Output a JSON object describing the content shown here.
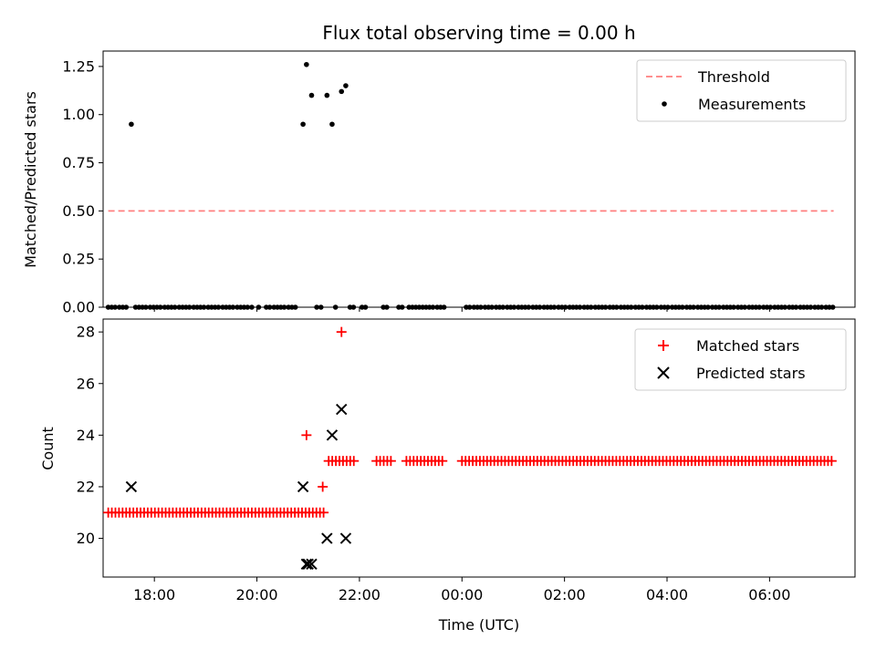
{
  "chart_data": [
    {
      "type": "scatter",
      "title": "Flux total observing time = 0.00 h",
      "ylabel": "Matched/Predicted stars",
      "xlabel": "",
      "xlim": [
        "17:00",
        "07:40"
      ],
      "ylim": [
        0,
        1.33
      ],
      "yticks": [
        "0.00",
        "0.25",
        "0.50",
        "0.75",
        "1.00",
        "1.25"
      ],
      "legend": {
        "position": "top-right",
        "entries": [
          "Threshold",
          "Measurements"
        ]
      },
      "colors": {
        "threshold": "#ff7f7f",
        "measurements": "#000000"
      },
      "threshold": {
        "name": "Threshold",
        "value": 0.5,
        "x": [
          "17:06",
          "07:15"
        ]
      },
      "measurements": {
        "name": "Measurements",
        "points": [
          {
            "x": "17:33",
            "y": 0.95
          },
          {
            "x": "20:54",
            "y": 0.95
          },
          {
            "x": "20:58",
            "y": 1.26
          },
          {
            "x": "21:04",
            "y": 1.1
          },
          {
            "x": "21:22",
            "y": 1.1
          },
          {
            "x": "21:28",
            "y": 0.95
          },
          {
            "x": "21:39",
            "y": 1.12
          },
          {
            "x": "21:44",
            "y": 1.15
          }
        ],
        "zeros": [
          "17:06",
          "17:10",
          "17:14",
          "17:19",
          "17:23",
          "17:27",
          "17:38",
          "17:42",
          "17:46",
          "17:50",
          "17:55",
          "17:59",
          "18:03",
          "18:07",
          "18:12",
          "18:16",
          "18:20",
          "18:24",
          "18:29",
          "18:33",
          "18:37",
          "18:41",
          "18:46",
          "18:50",
          "18:54",
          "18:58",
          "19:03",
          "19:07",
          "19:11",
          "19:15",
          "19:20",
          "19:24",
          "19:28",
          "19:32",
          "19:37",
          "19:41",
          "19:45",
          "19:49",
          "19:54",
          "20:02",
          "20:11",
          "20:15",
          "20:20",
          "20:24",
          "20:28",
          "20:32",
          "20:37",
          "20:41",
          "20:45",
          "21:10",
          "21:15",
          "21:32",
          "21:49",
          "21:53",
          "22:03",
          "22:07",
          "22:28",
          "22:32",
          "22:46",
          "22:50",
          "22:58",
          "23:02",
          "23:06",
          "23:10",
          "23:14",
          "23:18",
          "23:22",
          "23:26",
          "23:31",
          "23:35",
          "23:39",
          "00:05",
          "00:09",
          "00:14",
          "00:18",
          "00:22",
          "00:27",
          "00:31",
          "00:35",
          "00:40",
          "00:44",
          "00:48",
          "00:53",
          "00:57",
          "01:01",
          "01:06",
          "01:10",
          "01:14",
          "01:18",
          "01:23",
          "01:27",
          "01:31",
          "01:36",
          "01:40",
          "01:44",
          "01:48",
          "01:53",
          "01:57",
          "02:01",
          "02:06",
          "02:10",
          "02:14",
          "02:18",
          "02:23",
          "02:27",
          "02:31",
          "02:36",
          "02:40",
          "02:44",
          "02:48",
          "02:53",
          "02:57",
          "03:01",
          "03:06",
          "03:10",
          "03:14",
          "03:18",
          "03:23",
          "03:27",
          "03:31",
          "03:36",
          "03:40",
          "03:44",
          "03:48",
          "03:53",
          "03:57",
          "04:01",
          "04:06",
          "04:10",
          "04:14",
          "04:18",
          "04:23",
          "04:27",
          "04:31",
          "04:36",
          "04:40",
          "04:44",
          "04:48",
          "04:53",
          "04:57",
          "05:01",
          "05:06",
          "05:10",
          "05:14",
          "05:18",
          "05:23",
          "05:27",
          "05:31",
          "05:36",
          "05:40",
          "05:44",
          "05:48",
          "05:53",
          "05:57",
          "06:01",
          "06:06",
          "06:10",
          "06:14",
          "06:18",
          "06:23",
          "06:27",
          "06:31",
          "06:36",
          "06:40",
          "06:44",
          "06:48",
          "06:53",
          "06:57",
          "07:01",
          "07:06",
          "07:10",
          "07:14"
        ]
      }
    },
    {
      "type": "scatter",
      "ylabel": "Count",
      "xlabel": "Time (UTC)",
      "xlim": [
        "17:00",
        "07:40"
      ],
      "ylim": [
        18.5,
        28.5
      ],
      "yticks": [
        "20",
        "22",
        "24",
        "26",
        "28"
      ],
      "xticks": [
        "18:00",
        "20:00",
        "22:00",
        "00:00",
        "02:00",
        "04:00",
        "06:00"
      ],
      "legend": {
        "position": "top-right",
        "entries": [
          "Matched stars",
          "Predicted stars"
        ]
      },
      "colors": {
        "matched": "#ff0000",
        "predicted": "#000000"
      },
      "series": [
        {
          "name": "Matched stars",
          "marker": "plus",
          "points": [
            {
              "x": "20:58",
              "y": 24
            },
            {
              "x": "21:17",
              "y": 22
            },
            {
              "x": "21:39",
              "y": 28
            }
          ],
          "runs": [
            {
              "y": 21,
              "from": "17:06",
              "to": "21:20",
              "step_min": 4.2
            },
            {
              "y": 23,
              "from": "21:24",
              "to": "21:56",
              "step_min": 4.2
            },
            {
              "y": 23,
              "from": "22:20",
              "to": "22:38",
              "step_min": 4.2
            },
            {
              "y": 23,
              "from": "22:55",
              "to": "23:40",
              "step_min": 4.2
            },
            {
              "y": 23,
              "from": "00:00",
              "to": "07:15",
              "step_min": 4.2
            }
          ]
        },
        {
          "name": "Predicted stars",
          "marker": "x",
          "points": [
            {
              "x": "17:33",
              "y": 22
            },
            {
              "x": "20:54",
              "y": 22
            },
            {
              "x": "20:58",
              "y": 19
            },
            {
              "x": "21:00",
              "y": 19
            },
            {
              "x": "21:04",
              "y": 19
            },
            {
              "x": "21:22",
              "y": 20
            },
            {
              "x": "21:28",
              "y": 24
            },
            {
              "x": "21:39",
              "y": 25
            },
            {
              "x": "21:44",
              "y": 20
            }
          ]
        }
      ]
    }
  ]
}
